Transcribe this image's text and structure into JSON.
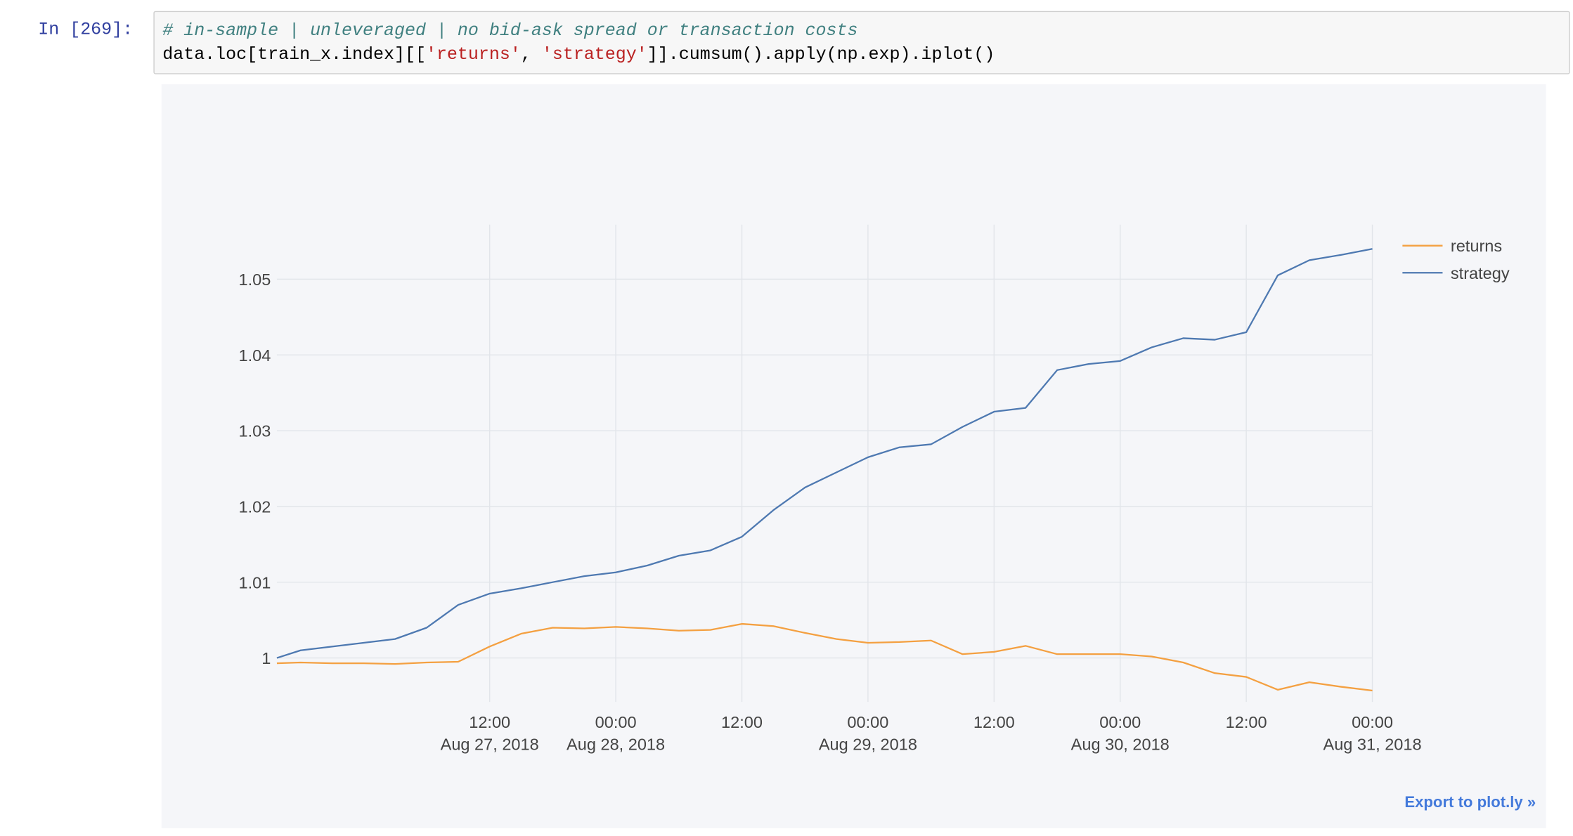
{
  "cell": {
    "prompt": "In [269]:",
    "code_comment": "# in-sample | unleveraged | no bid-ask spread or transaction costs",
    "code_line2": {
      "p1": "data.loc[train_x.index][[",
      "s1": "'returns'",
      "p2": ", ",
      "s2": "'strategy'",
      "p3": "]].cumsum().apply(np.exp).iplot()"
    }
  },
  "export_link": "Export to plot.ly »",
  "colors": {
    "returns": "#f4a041",
    "strategy": "#4e79b1",
    "grid": "#e2e5ea",
    "plot_bg": "#f5f6f9",
    "link": "#447adb"
  },
  "chart_data": {
    "type": "line",
    "title": "",
    "xlabel": "",
    "ylabel": "",
    "xlim": [
      "2018-08-26 15:45",
      "2018-08-31 00:00"
    ],
    "ylim": [
      0.9942,
      1.0572
    ],
    "grid": true,
    "legend_position": "top-right",
    "x_ticks": [
      {
        "x": "2018-08-27 12:00",
        "time": "12:00",
        "date": "Aug 27, 2018"
      },
      {
        "x": "2018-08-28 00:00",
        "time": "00:00",
        "date": "Aug 28, 2018"
      },
      {
        "x": "2018-08-28 12:00",
        "time": "12:00",
        "date": ""
      },
      {
        "x": "2018-08-29 00:00",
        "time": "00:00",
        "date": "Aug 29, 2018"
      },
      {
        "x": "2018-08-29 12:00",
        "time": "12:00",
        "date": ""
      },
      {
        "x": "2018-08-30 00:00",
        "time": "00:00",
        "date": "Aug 30, 2018"
      },
      {
        "x": "2018-08-30 12:00",
        "time": "12:00",
        "date": ""
      },
      {
        "x": "2018-08-31 00:00",
        "time": "00:00",
        "date": "Aug 31, 2018"
      }
    ],
    "y_ticks": [
      {
        "value": 1.0,
        "label": "1"
      },
      {
        "value": 1.01,
        "label": "1.01"
      },
      {
        "value": 1.02,
        "label": "1.02"
      },
      {
        "value": 1.03,
        "label": "1.03"
      },
      {
        "value": 1.04,
        "label": "1.04"
      },
      {
        "value": 1.05,
        "label": "1.05"
      }
    ],
    "series": [
      {
        "name": "returns",
        "x": [
          "2018-08-26 15:45",
          "2018-08-26 18:00",
          "2018-08-26 21:00",
          "2018-08-27 00:00",
          "2018-08-27 03:00",
          "2018-08-27 06:00",
          "2018-08-27 09:00",
          "2018-08-27 12:00",
          "2018-08-27 15:00",
          "2018-08-27 18:00",
          "2018-08-27 21:00",
          "2018-08-28 00:00",
          "2018-08-28 03:00",
          "2018-08-28 06:00",
          "2018-08-28 09:00",
          "2018-08-28 12:00",
          "2018-08-28 15:00",
          "2018-08-28 18:00",
          "2018-08-28 21:00",
          "2018-08-29 00:00",
          "2018-08-29 03:00",
          "2018-08-29 06:00",
          "2018-08-29 09:00",
          "2018-08-29 12:00",
          "2018-08-29 15:00",
          "2018-08-29 18:00",
          "2018-08-29 21:00",
          "2018-08-30 00:00",
          "2018-08-30 03:00",
          "2018-08-30 06:00",
          "2018-08-30 09:00",
          "2018-08-30 12:00",
          "2018-08-30 15:00",
          "2018-08-30 18:00",
          "2018-08-30 21:00",
          "2018-08-31 00:00"
        ],
        "y": [
          0.9993,
          0.9994,
          0.9993,
          0.9993,
          0.9992,
          0.9994,
          0.9995,
          1.0015,
          1.0032,
          1.004,
          1.0039,
          1.0041,
          1.0039,
          1.0036,
          1.0037,
          1.0045,
          1.0042,
          1.0033,
          1.0025,
          1.002,
          1.0021,
          1.0023,
          1.0005,
          1.0008,
          1.0016,
          1.0005,
          1.0005,
          1.0005,
          1.0002,
          0.9994,
          0.998,
          0.9975,
          0.9958,
          0.9968,
          0.9962,
          0.9957
        ]
      },
      {
        "name": "strategy",
        "x": [
          "2018-08-26 15:45",
          "2018-08-26 18:00",
          "2018-08-26 21:00",
          "2018-08-27 00:00",
          "2018-08-27 03:00",
          "2018-08-27 06:00",
          "2018-08-27 09:00",
          "2018-08-27 12:00",
          "2018-08-27 15:00",
          "2018-08-27 18:00",
          "2018-08-27 21:00",
          "2018-08-28 00:00",
          "2018-08-28 03:00",
          "2018-08-28 06:00",
          "2018-08-28 09:00",
          "2018-08-28 12:00",
          "2018-08-28 15:00",
          "2018-08-28 18:00",
          "2018-08-28 21:00",
          "2018-08-29 00:00",
          "2018-08-29 03:00",
          "2018-08-29 06:00",
          "2018-08-29 09:00",
          "2018-08-29 12:00",
          "2018-08-29 15:00",
          "2018-08-29 18:00",
          "2018-08-29 21:00",
          "2018-08-30 00:00",
          "2018-08-30 03:00",
          "2018-08-30 06:00",
          "2018-08-30 09:00",
          "2018-08-30 12:00",
          "2018-08-30 15:00",
          "2018-08-30 18:00",
          "2018-08-30 21:00",
          "2018-08-31 00:00"
        ],
        "y": [
          1.0,
          1.001,
          1.0015,
          1.002,
          1.0025,
          1.004,
          1.007,
          1.0085,
          1.0092,
          1.01,
          1.0108,
          1.0113,
          1.0122,
          1.0135,
          1.0142,
          1.016,
          1.0195,
          1.0225,
          1.0245,
          1.0265,
          1.0278,
          1.0282,
          1.0305,
          1.0325,
          1.033,
          1.038,
          1.0388,
          1.0392,
          1.041,
          1.0422,
          1.042,
          1.043,
          1.0505,
          1.0525,
          1.0532,
          1.054
        ]
      }
    ]
  }
}
